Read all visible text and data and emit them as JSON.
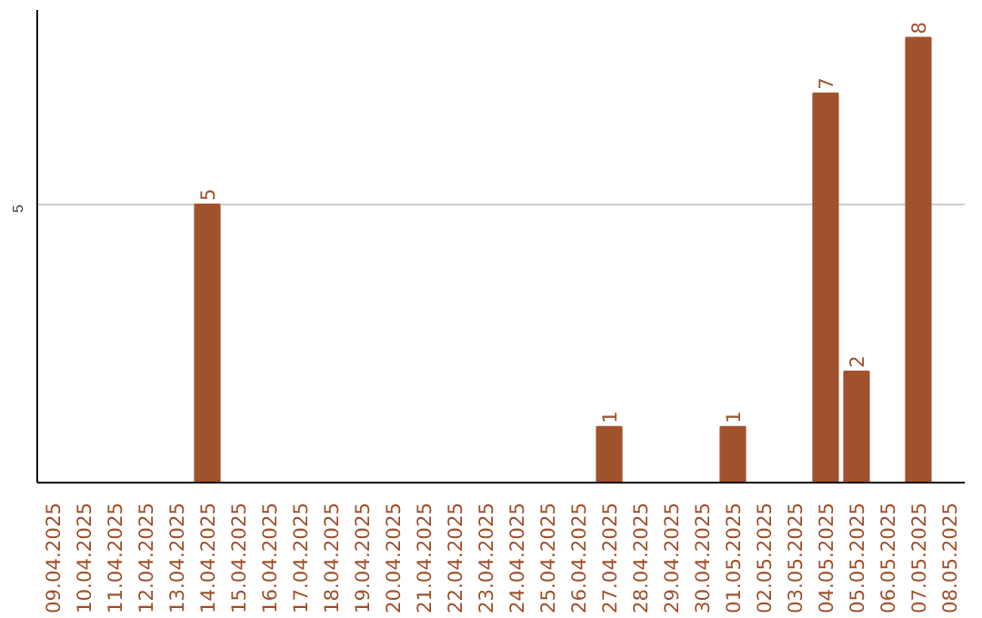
{
  "chart_data": {
    "type": "bar",
    "categories": [
      "09.04.2025",
      "10.04.2025",
      "11.04.2025",
      "12.04.2025",
      "13.04.2025",
      "14.04.2025",
      "15.04.2025",
      "16.04.2025",
      "17.04.2025",
      "18.04.2025",
      "19.04.2025",
      "20.04.2025",
      "21.04.2025",
      "22.04.2025",
      "23.04.2025",
      "24.04.2025",
      "25.04.2025",
      "26.04.2025",
      "27.04.2025",
      "28.04.2025",
      "29.04.2025",
      "30.04.2025",
      "01.05.2025",
      "02.05.2025",
      "03.05.2025",
      "04.05.2025",
      "05.05.2025",
      "06.05.2025",
      "07.05.2025",
      "08.05.2025"
    ],
    "values": [
      null,
      null,
      null,
      null,
      null,
      5,
      null,
      null,
      null,
      null,
      null,
      null,
      null,
      null,
      null,
      null,
      null,
      null,
      1,
      null,
      null,
      null,
      1,
      null,
      null,
      7,
      2,
      null,
      8,
      null
    ],
    "color": "#a0522d",
    "ylim": [
      0,
      8.5
    ],
    "yticks": [
      5
    ],
    "grid": "y",
    "data_labels": true
  }
}
